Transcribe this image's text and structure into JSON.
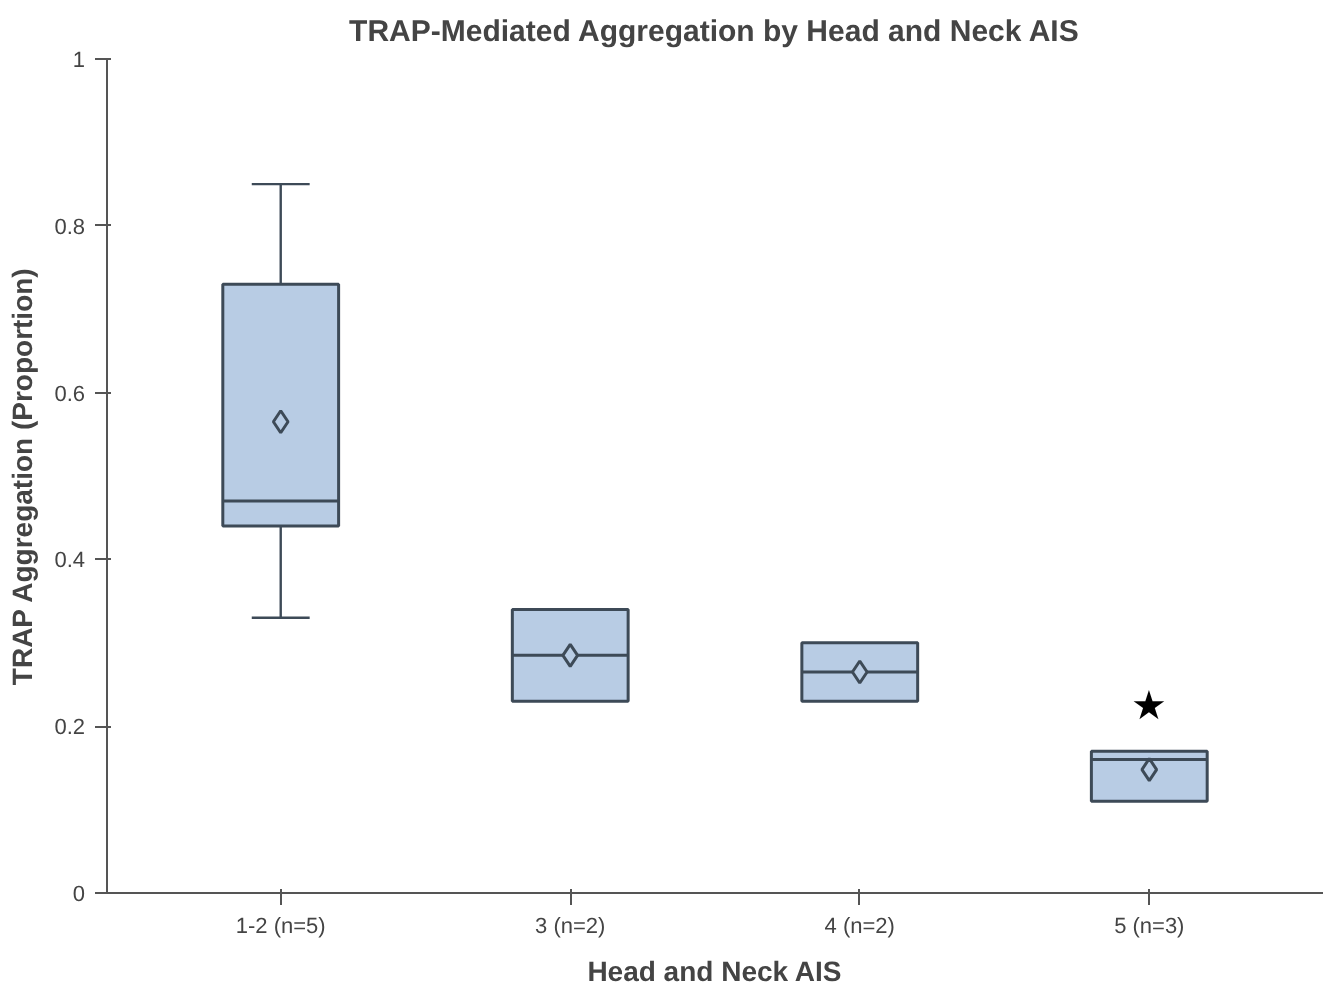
{
  "chart_data": {
    "type": "box",
    "title": "TRAP-Mediated Aggregation by Head and Neck AIS",
    "xlabel": "Head and Neck AIS",
    "ylabel": "TRAP Aggregation (Proportion)",
    "categories": [
      "1-2 (n=5)",
      "3 (n=2)",
      "4 (n=2)",
      "5 (n=3)"
    ],
    "boxes": [
      {
        "low": 0.33,
        "q1": 0.44,
        "median": 0.47,
        "q3": 0.73,
        "high": 0.85,
        "mean": 0.565
      },
      {
        "low": 0.23,
        "q1": 0.23,
        "median": 0.285,
        "q3": 0.34,
        "high": 0.34,
        "mean": 0.285
      },
      {
        "low": 0.23,
        "q1": 0.23,
        "median": 0.265,
        "q3": 0.3,
        "high": 0.3,
        "mean": 0.265
      },
      {
        "low": 0.11,
        "q1": 0.11,
        "median": 0.16,
        "q3": 0.17,
        "high": 0.17,
        "mean": 0.148
      }
    ],
    "color": "#b8cce4",
    "marker": "diamond",
    "ylim": [
      0,
      1
    ],
    "yticks": [
      0,
      0.2,
      0.4,
      0.6,
      0.8,
      1
    ],
    "grid": false,
    "annotations": [
      "★"
    ]
  }
}
